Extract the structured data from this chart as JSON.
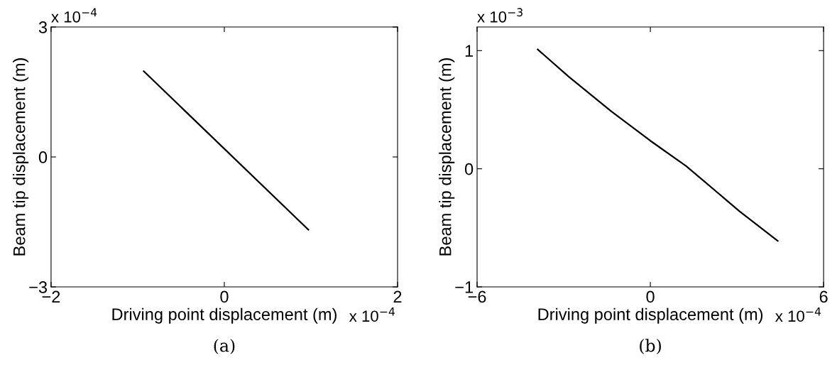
{
  "chart_data": [
    {
      "type": "line",
      "title": "(a)",
      "xlabel": "Driving point displacement (m)",
      "ylabel": "Beam tip displacement (m)",
      "annotations": [
        "x 10$^{−4}$",
        "x 10$^{−4}$"
      ],
      "series": [
        {
          "color": "#000000",
          "x": [
            -0.93,
            0.97
          ],
          "values": [
            1.98,
            -1.68
          ]
        }
      ],
      "xlim": [
        -2,
        2
      ],
      "xticks": [
        -2,
        0,
        2
      ],
      "ylim": [
        -3,
        3
      ],
      "yticks": [
        -3,
        0,
        3
      ],
      "grid": false,
      "legend": false,
      "marker": "none",
      "line_style": "solid"
    },
    {
      "type": "line",
      "title": "(b)",
      "xlabel": "Driving point displacement (m)",
      "ylabel": "Beam tip displacement (m)",
      "annotations": [
        "x 10$^{−3}$",
        "x 10$^{−4}$"
      ],
      "series": [
        {
          "color": "#000000",
          "x": [
            -3.9,
            -2.83,
            -1.35,
            0,
            1.24,
            3.09,
            4.41
          ],
          "values": [
            1.01,
            0.78,
            0.485,
            0.237,
            0.023,
            -0.36,
            -0.61
          ]
        }
      ],
      "xlim": [
        -6,
        6
      ],
      "xticks": [
        -6,
        0,
        6
      ],
      "ylim": [
        -1,
        1.2
      ],
      "yticks": [
        -1,
        0,
        1
      ],
      "grid": false,
      "legend": false,
      "marker": "none",
      "line_style": "solid"
    }
  ]
}
